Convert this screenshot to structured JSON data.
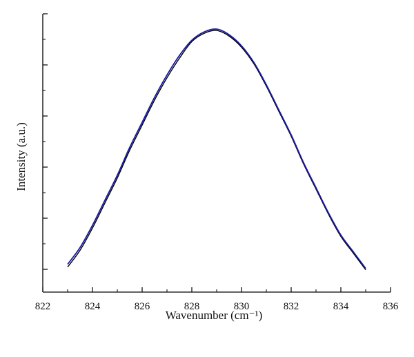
{
  "chart_data": {
    "type": "line",
    "title": "",
    "xlabel": "Wavenumber (cm⁻¹)",
    "ylabel": "Intensity (a.u.)",
    "xlim": [
      822,
      836
    ],
    "ylim": [
      0,
      1
    ],
    "x_ticks": [
      822,
      824,
      826,
      828,
      830,
      832,
      834,
      836
    ],
    "x_tick_labels": [
      "822",
      "824",
      "826",
      "828",
      "830",
      "832",
      "834",
      "836"
    ],
    "y_tick_labels_shown": false,
    "grid": false,
    "legend": "none",
    "series": [
      {
        "color": "#000000",
        "x": [
          823.0,
          823.5,
          824.0,
          824.5,
          825.0,
          825.5,
          826.0,
          826.5,
          827.0,
          827.5,
          828.0,
          828.5,
          829.0,
          829.5,
          830.0,
          830.5,
          831.0,
          831.5,
          832.0,
          832.5,
          833.0,
          833.5,
          834.0,
          834.5,
          835.0
        ],
        "y": [
          0.09,
          0.15,
          0.23,
          0.32,
          0.41,
          0.51,
          0.6,
          0.69,
          0.77,
          0.84,
          0.9,
          0.93,
          0.94,
          0.92,
          0.88,
          0.82,
          0.74,
          0.65,
          0.56,
          0.46,
          0.37,
          0.28,
          0.2,
          0.14,
          0.08
        ]
      },
      {
        "color": "#1a1aa8",
        "x": [
          823.0,
          823.5,
          824.0,
          824.5,
          825.0,
          825.5,
          826.0,
          826.5,
          827.0,
          827.5,
          828.0,
          828.5,
          829.0,
          829.5,
          830.0,
          830.5,
          831.0,
          831.5,
          832.0,
          832.5,
          833.0,
          833.5,
          834.0,
          834.5,
          835.0
        ],
        "y": [
          0.1,
          0.16,
          0.24,
          0.33,
          0.42,
          0.52,
          0.61,
          0.7,
          0.78,
          0.85,
          0.905,
          0.935,
          0.945,
          0.925,
          0.885,
          0.825,
          0.745,
          0.655,
          0.565,
          0.465,
          0.375,
          0.285,
          0.205,
          0.145,
          0.085
        ]
      }
    ]
  }
}
